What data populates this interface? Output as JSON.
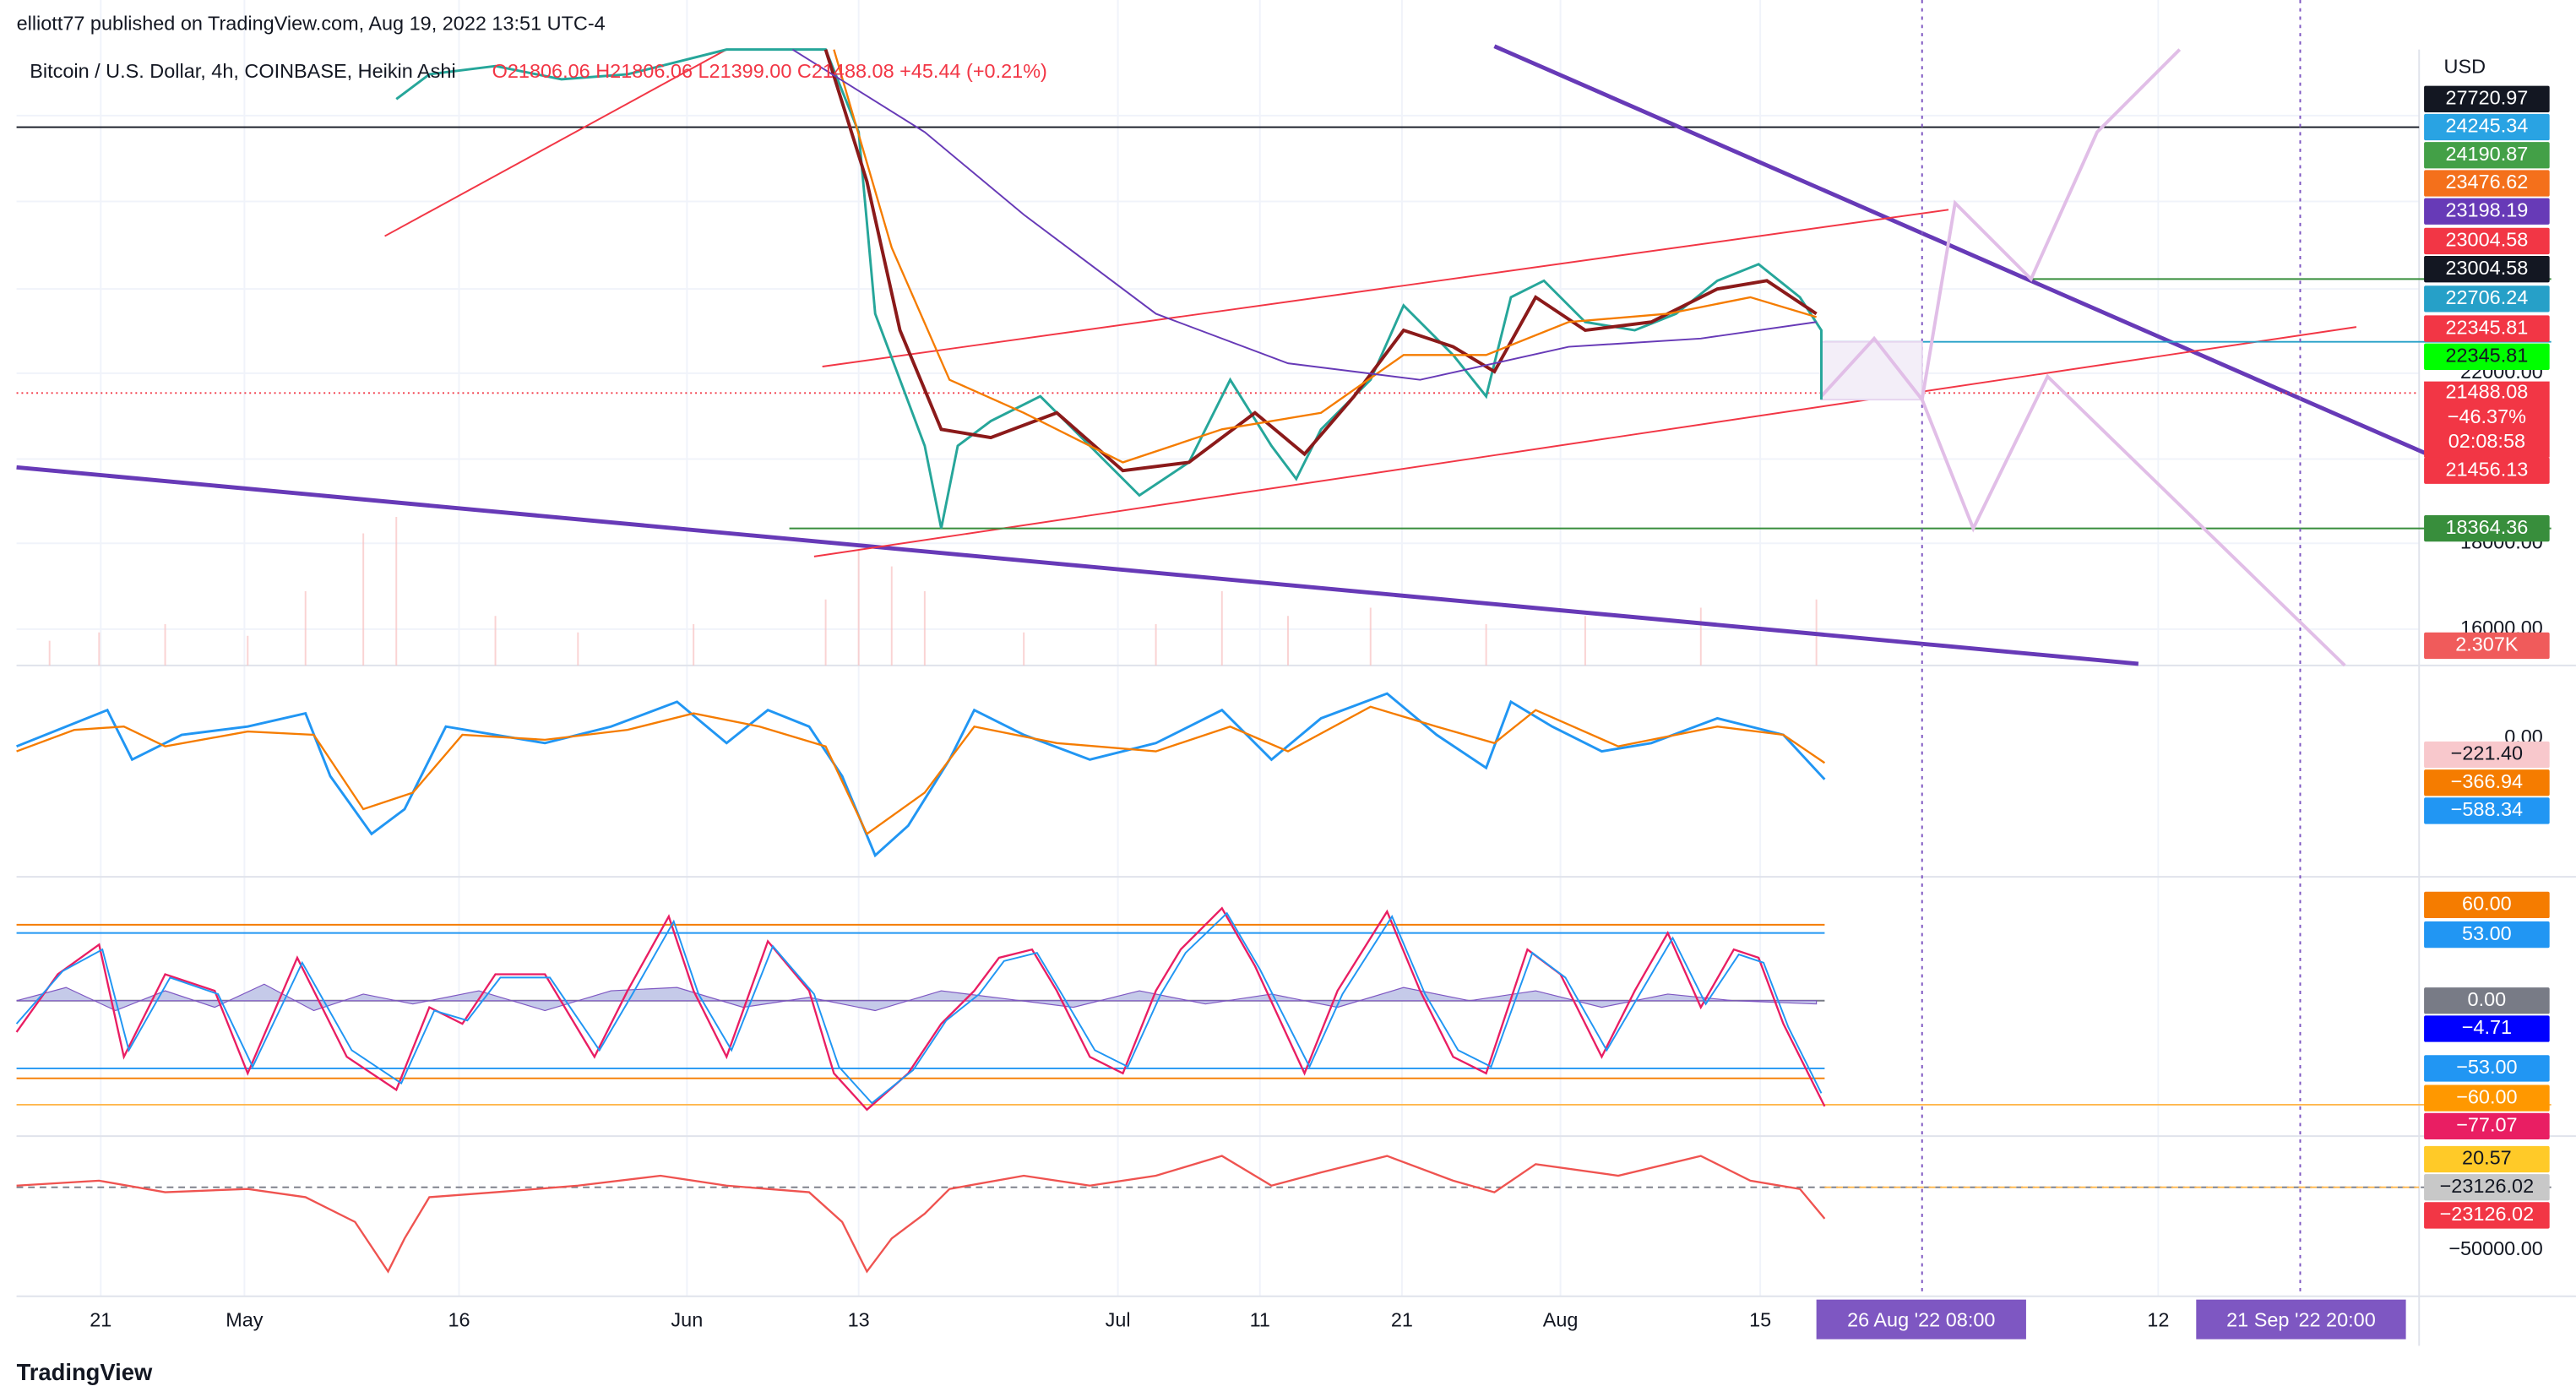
{
  "header": {
    "publisher": "elliott77 published on TradingView.com, Aug 19, 2022 13:51 UTC-4",
    "symbol": "Bitcoin / U.S. Dollar, 4h, COINBASE, Heikin Ashi",
    "ohlc": "O21806.06 H21806.06 L21399.00 C21488.08 +45.44 (+0.21%)"
  },
  "price_scale": {
    "currency": "USD",
    "labels": [
      "27720.97",
      "24245.34",
      "24190.87",
      "23476.62",
      "23198.19",
      "23004.58",
      "23004.58",
      "22706.24",
      "22345.81",
      "22345.81",
      "21456.13",
      "18364.36",
      "2.307K"
    ],
    "last": [
      "21488.08",
      "−46.37%",
      "02:08:58"
    ],
    "axis": [
      "22000.00",
      "18000.00",
      "16000.00"
    ]
  },
  "macd_scale": {
    "axis": "0.00",
    "labels": [
      "−221.40",
      "−366.94",
      "−588.34"
    ]
  },
  "rsi_scale": {
    "labels": [
      "60.00",
      "53.00",
      "0.00",
      "−4.71",
      "−53.00",
      "−60.00",
      "−77.07"
    ]
  },
  "cvd_scale": {
    "labels": [
      "20.57",
      "−23126.02",
      "−23126.02"
    ],
    "axis": "−50000.00"
  },
  "time_axis": [
    "21",
    "May",
    "16",
    "Jun",
    "13",
    "Jul",
    "11",
    "21",
    "Aug",
    "15",
    "12"
  ],
  "time_markers": [
    "26 Aug '22  08:00",
    "21 Sep '22  20:00"
  ],
  "footer": {
    "brand": "TradingView"
  }
}
